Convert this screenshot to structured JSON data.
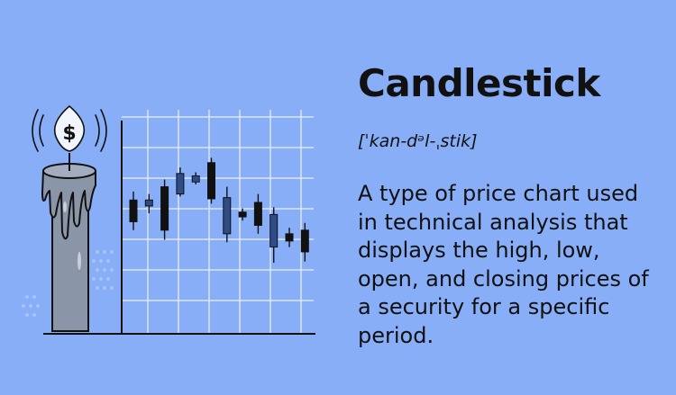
{
  "term": "Candlestick",
  "pronunciation": "[ˈkan-dᵊl-ˌstik]",
  "definition": "A type of price chart used in technical analysis that displays the high, low, open, and closing prices of a security for a specific period.",
  "icons": {
    "coin": "dollar-coin-icon",
    "candle": "melting-candle-icon"
  },
  "coin_symbol": "$",
  "colors": {
    "background": "#88aef7",
    "candle_body": "#8a95a8",
    "candle_up": "#2e4c88",
    "candle_down": "#111111",
    "grid": "#dbe6fb",
    "text": "#111111"
  },
  "chart_data": {
    "type": "candlestick",
    "candles": [
      {
        "high": 0.62,
        "low": 0.3,
        "open": 0.37,
        "close": 0.55,
        "color": "dark"
      },
      {
        "high": 0.6,
        "low": 0.44,
        "open": 0.5,
        "close": 0.55,
        "color": "navy"
      },
      {
        "high": 0.72,
        "low": 0.22,
        "open": 0.3,
        "close": 0.66,
        "color": "dark"
      },
      {
        "high": 0.82,
        "low": 0.58,
        "open": 0.6,
        "close": 0.77,
        "color": "navy"
      },
      {
        "high": 0.78,
        "low": 0.68,
        "open": 0.7,
        "close": 0.75,
        "color": "navy"
      },
      {
        "high": 0.9,
        "low": 0.52,
        "open": 0.56,
        "close": 0.86,
        "color": "dark"
      },
      {
        "high": 0.66,
        "low": 0.2,
        "open": 0.27,
        "close": 0.57,
        "color": "navy"
      },
      {
        "high": 0.48,
        "low": 0.38,
        "open": 0.41,
        "close": 0.45,
        "color": "dark"
      },
      {
        "high": 0.6,
        "low": 0.27,
        "open": 0.34,
        "close": 0.53,
        "color": "dark"
      },
      {
        "high": 0.49,
        "low": 0.03,
        "open": 0.16,
        "close": 0.43,
        "color": "navy"
      },
      {
        "high": 0.32,
        "low": 0.16,
        "open": 0.21,
        "close": 0.27,
        "color": "dark"
      },
      {
        "high": 0.36,
        "low": 0.04,
        "open": 0.12,
        "close": 0.3,
        "color": "dark"
      }
    ]
  }
}
